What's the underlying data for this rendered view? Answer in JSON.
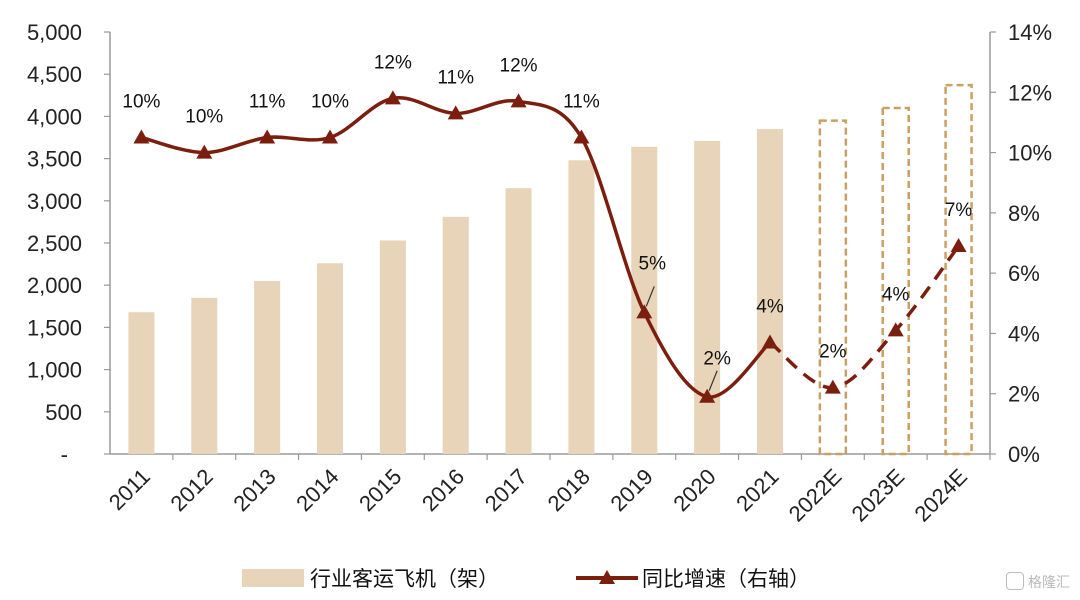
{
  "chart_data": {
    "type": "bar",
    "categories": [
      "2011",
      "2012",
      "2013",
      "2014",
      "2015",
      "2016",
      "2017",
      "2018",
      "2019",
      "2020",
      "2021",
      "2022E",
      "2023E",
      "2024E"
    ],
    "series": [
      {
        "name": "行业客运飞机（架）",
        "kind": "bar",
        "axis": "left",
        "values": [
          1680,
          1850,
          2050,
          2260,
          2530,
          2810,
          3150,
          3480,
          3640,
          3710,
          3850,
          3950,
          4100,
          4370
        ],
        "estimated_from_index": 11
      },
      {
        "name": "同比增速（右轴）",
        "kind": "line",
        "axis": "right",
        "values": [
          10.5,
          10.0,
          10.5,
          10.5,
          11.8,
          11.3,
          11.7,
          10.5,
          4.7,
          1.9,
          3.7,
          2.2,
          4.1,
          6.9
        ],
        "labels": [
          "10%",
          "10%",
          "11%",
          "10%",
          "12%",
          "11%",
          "12%",
          "11%",
          "5%",
          "2%",
          "4%",
          "2%",
          "4%",
          "7%"
        ],
        "forecast_from_index": 10
      }
    ],
    "y_left": {
      "lim": [
        0,
        5000
      ],
      "ticks": [
        "-",
        "500",
        "1,000",
        "1,500",
        "2,000",
        "2,500",
        "3,000",
        "3,500",
        "4,000",
        "4,500",
        "5,000"
      ]
    },
    "y_right": {
      "lim": [
        0,
        14
      ],
      "ticks": [
        "0%",
        "2%",
        "4%",
        "6%",
        "8%",
        "10%",
        "12%",
        "14%"
      ]
    },
    "legend": {
      "position": "bottom"
    },
    "colors": {
      "bar": "#e8d4b8",
      "bar_estimate_border": "#c8a064",
      "line": "#7b1e0e",
      "axis": "#9a9a9a"
    }
  },
  "watermark": {
    "text": "格隆汇",
    "icon": "g-logo-icon"
  }
}
